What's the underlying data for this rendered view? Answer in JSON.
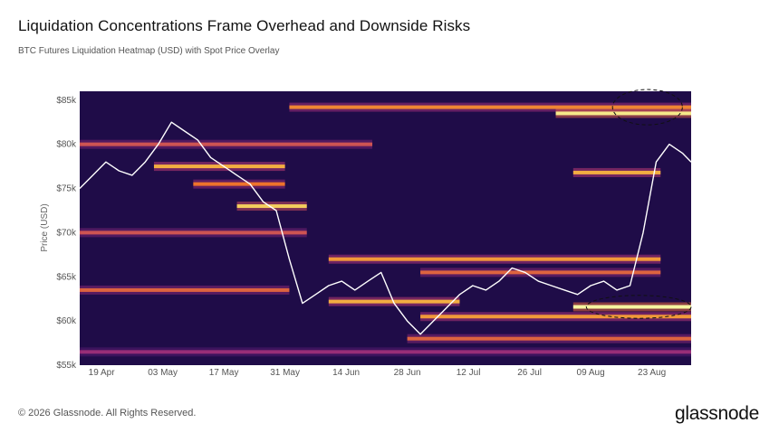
{
  "header": {
    "title": "Liquidation Concentrations Frame Overhead and Downside Risks",
    "subtitle": "BTC Futures Liquidation Heatmap (USD) with Spot Price Overlay"
  },
  "footer": {
    "copyright": "© 2026 Glassnode. All Rights Reserved.",
    "brand": "glassnode"
  },
  "colors": {
    "background": "#ffffff",
    "heatmap_low": "#1f0c48",
    "heatmap_mid": "#b5367a",
    "heatmap_high": "#fcffa4",
    "price_line": "#ffffff",
    "highlight_ellipse": "#111111"
  },
  "chart_data": {
    "type": "heatmap",
    "title": "Liquidation Concentrations Frame Overhead and Downside Risks",
    "subtitle": "BTC Futures Liquidation Heatmap (USD) with Spot Price Overlay",
    "ylabel": "Price (USD)",
    "ylim": [
      55000,
      86000
    ],
    "y_scale": "linear",
    "y_ticks": [
      55000,
      60000,
      65000,
      70000,
      75000,
      80000,
      85000
    ],
    "y_tick_labels": [
      "$55k",
      "$60k",
      "$65k",
      "$70k",
      "$75k",
      "$80k",
      "$85k"
    ],
    "xlim": [
      "2024-04-14",
      "2024-09-01"
    ],
    "x_tick_dates": [
      "2024-04-19",
      "2024-05-03",
      "2024-05-17",
      "2024-05-31",
      "2024-06-14",
      "2024-06-28",
      "2024-07-12",
      "2024-07-26",
      "2024-08-09",
      "2024-08-23"
    ],
    "x_tick_labels": [
      "19 Apr",
      "03 May",
      "17 May",
      "31 May",
      "14 Jun",
      "28 Jun",
      "12 Jul",
      "26 Jul",
      "09 Aug",
      "23 Aug"
    ],
    "grid": false,
    "legend": "none",
    "spot_price": {
      "name": "Spot Price",
      "x": [
        "2024-04-14",
        "2024-04-17",
        "2024-04-20",
        "2024-04-23",
        "2024-04-26",
        "2024-04-29",
        "2024-05-02",
        "2024-05-05",
        "2024-05-08",
        "2024-05-11",
        "2024-05-14",
        "2024-05-17",
        "2024-05-20",
        "2024-05-23",
        "2024-05-26",
        "2024-05-29",
        "2024-06-01",
        "2024-06-04",
        "2024-06-07",
        "2024-06-10",
        "2024-06-13",
        "2024-06-16",
        "2024-06-19",
        "2024-06-22",
        "2024-06-25",
        "2024-06-28",
        "2024-07-01",
        "2024-07-04",
        "2024-07-07",
        "2024-07-10",
        "2024-07-13",
        "2024-07-16",
        "2024-07-19",
        "2024-07-22",
        "2024-07-25",
        "2024-07-28",
        "2024-07-31",
        "2024-08-03",
        "2024-08-06",
        "2024-08-09",
        "2024-08-12",
        "2024-08-15",
        "2024-08-18",
        "2024-08-21",
        "2024-08-24",
        "2024-08-27",
        "2024-08-30",
        "2024-09-01"
      ],
      "y": [
        75000,
        76500,
        78000,
        77000,
        76500,
        78000,
        80000,
        82500,
        81500,
        80500,
        78500,
        77500,
        76500,
        75500,
        73500,
        72500,
        67000,
        62000,
        63000,
        64000,
        64500,
        63500,
        64500,
        65500,
        62000,
        60000,
        58500,
        60000,
        61500,
        63000,
        64000,
        63500,
        64500,
        66000,
        65500,
        64500,
        64000,
        63500,
        63000,
        64000,
        64500,
        63500,
        64000,
        70000,
        78000,
        80000,
        79000,
        78000
      ]
    },
    "liquidation_bands": [
      {
        "price": 84200,
        "start": "2024-06-01",
        "end": "2024-09-01",
        "intensity": 0.65
      },
      {
        "price": 83500,
        "start": "2024-08-01",
        "end": "2024-09-01",
        "intensity": 0.95
      },
      {
        "price": 80000,
        "start": "2024-04-14",
        "end": "2024-06-20",
        "intensity": 0.5
      },
      {
        "price": 77500,
        "start": "2024-05-01",
        "end": "2024-05-31",
        "intensity": 0.75
      },
      {
        "price": 76800,
        "start": "2024-08-05",
        "end": "2024-08-25",
        "intensity": 0.75
      },
      {
        "price": 75500,
        "start": "2024-05-10",
        "end": "2024-05-31",
        "intensity": 0.6
      },
      {
        "price": 73000,
        "start": "2024-05-20",
        "end": "2024-06-05",
        "intensity": 0.85
      },
      {
        "price": 70000,
        "start": "2024-04-14",
        "end": "2024-06-05",
        "intensity": 0.5
      },
      {
        "price": 67000,
        "start": "2024-06-10",
        "end": "2024-08-25",
        "intensity": 0.7
      },
      {
        "price": 65500,
        "start": "2024-07-01",
        "end": "2024-08-25",
        "intensity": 0.55
      },
      {
        "price": 63500,
        "start": "2024-04-14",
        "end": "2024-06-01",
        "intensity": 0.55
      },
      {
        "price": 62200,
        "start": "2024-06-10",
        "end": "2024-07-10",
        "intensity": 0.75
      },
      {
        "price": 61600,
        "start": "2024-08-05",
        "end": "2024-09-01",
        "intensity": 1.0
      },
      {
        "price": 60500,
        "start": "2024-07-01",
        "end": "2024-09-01",
        "intensity": 0.7
      },
      {
        "price": 58000,
        "start": "2024-06-28",
        "end": "2024-09-01",
        "intensity": 0.55
      },
      {
        "price": 56500,
        "start": "2024-04-14",
        "end": "2024-09-01",
        "intensity": 0.35
      }
    ],
    "annotations": [
      {
        "type": "dashed-ellipse",
        "center_date": "2024-08-22",
        "center_price": 84200,
        "date_halfwidth_days": 8,
        "price_halfheight": 2000
      },
      {
        "type": "dashed-ellipse",
        "center_date": "2024-08-20",
        "center_price": 61600,
        "date_halfwidth_days": 12,
        "price_halfheight": 1300
      }
    ]
  }
}
